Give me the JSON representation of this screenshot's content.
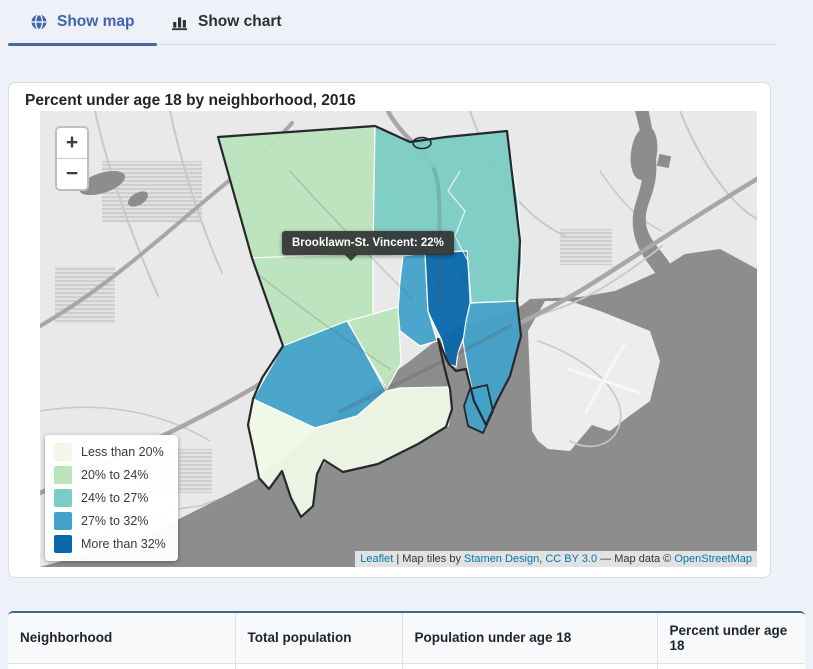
{
  "tabs": {
    "map": {
      "label": "Show map"
    },
    "chart": {
      "label": "Show chart"
    }
  },
  "panel": {
    "title": "Percent under age 18 by neighborhood, 2016"
  },
  "map": {
    "zoom_in_label": "+",
    "zoom_out_label": "−",
    "tooltip": {
      "text": "Brooklawn-St. Vincent: 22%"
    },
    "legend": [
      {
        "label": "Less than 20%",
        "color": "#f0f9e8"
      },
      {
        "label": "20% to 24%",
        "color": "#bae4bc"
      },
      {
        "label": "24% to 27%",
        "color": "#7bccc4"
      },
      {
        "label": "27% to 32%",
        "color": "#43a2ca"
      },
      {
        "label": "More than 32%",
        "color": "#0868ac"
      }
    ],
    "attribution": [
      {
        "text": "Leaflet",
        "link": true
      },
      {
        "text": " | Map tiles by ",
        "link": false
      },
      {
        "text": "Stamen Design",
        "link": true
      },
      {
        "text": ", ",
        "link": false
      },
      {
        "text": "CC BY 3.0",
        "link": true
      },
      {
        "text": " — Map data © ",
        "link": false
      },
      {
        "text": "OpenStreetMap",
        "link": true
      }
    ],
    "base_colors": {
      "land": "#e9e9e9",
      "water": "#8d8d8d",
      "road": "#c8c8c8",
      "highway": "#a7a7a7"
    }
  },
  "table": {
    "headers": [
      "Neighborhood",
      "Total population",
      "Population under age 18",
      "Percent under age 18"
    ]
  },
  "chart_data": {
    "type": "choropleth",
    "title": "Percent under age 18 by neighborhood, 2016",
    "classes": [
      "Less than 20%",
      "20% to 24%",
      "24% to 27%",
      "27% to 32%",
      "More than 32%"
    ],
    "class_colors": [
      "#f0f9e8",
      "#bae4bc",
      "#7bccc4",
      "#43a2ca",
      "#0868ac"
    ],
    "highlighted_region": {
      "name": "Brooklawn-St. Vincent",
      "value_pct": 22
    }
  }
}
